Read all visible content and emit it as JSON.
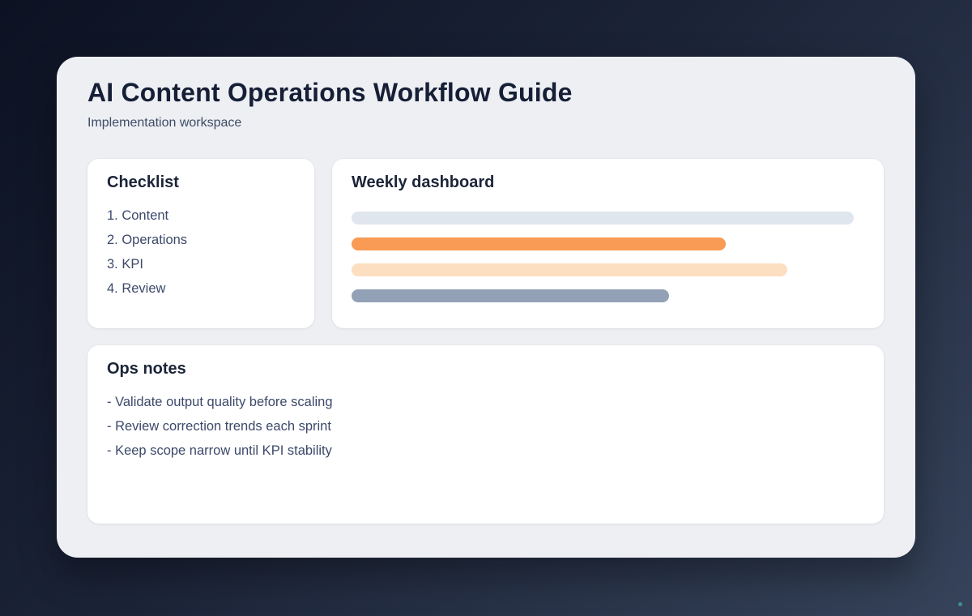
{
  "page": {
    "title": "AI Content Operations Workflow Guide",
    "subtitle": "Implementation workspace"
  },
  "checklist": {
    "heading": "Checklist",
    "items": [
      "1. Content",
      "2. Operations",
      "3. KPI",
      "4. Review"
    ]
  },
  "dashboard": {
    "heading": "Weekly dashboard",
    "bars": [
      {
        "name": "dashboard-bar-1",
        "width_pct": 98,
        "color": "#dfe6ee"
      },
      {
        "name": "dashboard-bar-2",
        "width_pct": 73,
        "color": "#f99b55"
      },
      {
        "name": "dashboard-bar-3",
        "width_pct": 85,
        "color": "#fcdfc0"
      },
      {
        "name": "dashboard-bar-4",
        "width_pct": 62,
        "color": "#92a1b6"
      }
    ]
  },
  "notes": {
    "heading": "Ops notes",
    "items": [
      "- Validate output quality before scaling",
      "- Review correction trends each sprint",
      "- Keep scope narrow until KPI stability"
    ]
  },
  "colors": {
    "background_gradient_start": "#0c1222",
    "background_gradient_end": "#36435a",
    "workspace_surface": "#edeff3",
    "panel_surface": "#ffffff",
    "heading_text": "#1b2438",
    "body_text": "#3c496a"
  },
  "decor": {
    "corner_dot_color": "#3e8f8a"
  }
}
